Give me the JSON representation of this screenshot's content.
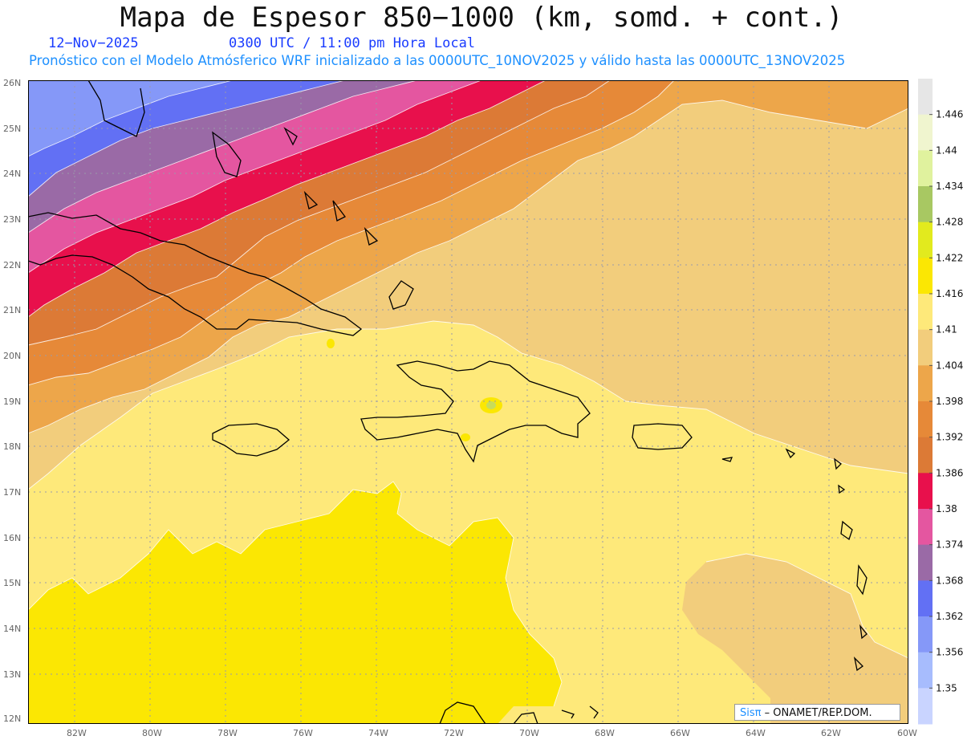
{
  "header": {
    "title": "Mapa de Espesor 850−1000 (km, somd. + cont.)",
    "date": "12−Nov−2025",
    "time": "0300 UTC / 11:00 pm Hora Local",
    "description": "Pronóstico con el Modelo Atmósferico WRF inicializado a las 0000UTC_10NOV2025 y válido hasta las  0000UTC_13NOV2025"
  },
  "map": {
    "lat_labels": [
      "26N",
      "25N",
      "24N",
      "23N",
      "22N",
      "21N",
      "20N",
      "19N",
      "18N",
      "17N",
      "16N",
      "15N",
      "14N",
      "13N",
      "12N"
    ],
    "lon_labels": [
      "82W",
      "80W",
      "78W",
      "76W",
      "74W",
      "72W",
      "70W",
      "68W",
      "66W",
      "64W",
      "62W",
      "60W"
    ],
    "grid": true
  },
  "colorbar": {
    "labels": [
      "1.446",
      "1.44",
      "1.434",
      "1.428",
      "1.422",
      "1.416",
      "1.41",
      "1.404",
      "1.398",
      "1.392",
      "1.386",
      "1.38",
      "1.374",
      "1.368",
      "1.362",
      "1.356",
      "1.35"
    ],
    "colors": [
      "#e6e6e6",
      "#f0f5cf",
      "#e0f29e",
      "#a8c862",
      "#e2ea1e",
      "#fbe703",
      "#fee97a",
      "#f2cd7c",
      "#eda64a",
      "#e68938",
      "#dc7a36",
      "#e8104c",
      "#e456a0",
      "#9a6aa6",
      "#6270f4",
      "#8598f8",
      "#a7bcfd",
      "#c9d4ff"
    ]
  },
  "credit": {
    "brand": "Sisπ",
    "org": "– ONAMET/REP.DOM."
  }
}
